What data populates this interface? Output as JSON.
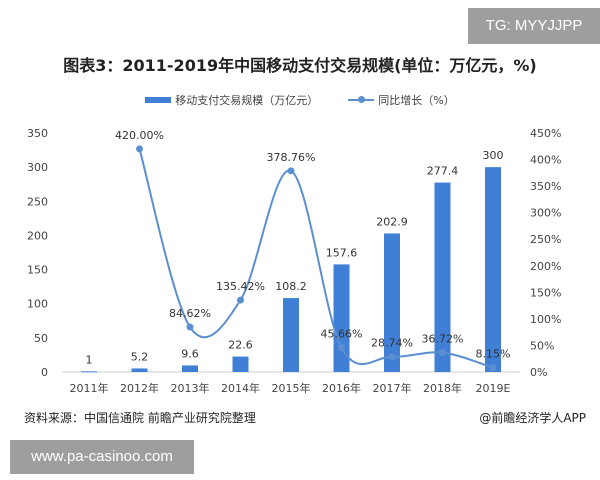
{
  "watermark_top": "TG: MYYJJPP",
  "watermark_bottom": "www.pa-casinoo.com",
  "source": "资料来源：中国信通院 前瞻产业研究院整理",
  "brand": "@前瞻经济学人APP",
  "chart_data": {
    "type": "bar+line",
    "title": "图表3：2011-2019年中国移动支付交易规模(单位：万亿元，%)",
    "categories": [
      "2011年",
      "2012年",
      "2013年",
      "2014年",
      "2015年",
      "2016年",
      "2017年",
      "2018年",
      "2019E"
    ],
    "series": [
      {
        "name": "移动支付交易规模（万亿元）",
        "type": "bar",
        "axis": "left",
        "values": [
          1,
          5.2,
          9.6,
          22.6,
          108.2,
          157.6,
          202.9,
          277.4,
          300
        ],
        "labels": [
          "1",
          "5.2",
          "9.6",
          "22.6",
          "108.2",
          "157.6",
          "202.9",
          "277.4",
          "300"
        ]
      },
      {
        "name": "同比增长（%）",
        "type": "line",
        "axis": "right",
        "values": [
          null,
          420.0,
          84.62,
          135.42,
          378.76,
          45.66,
          28.74,
          36.72,
          8.15
        ],
        "labels": [
          "",
          "420.00%",
          "84.62%",
          "135.42%",
          "378.76%",
          "45.66%",
          "28.74%",
          "36.72%",
          "8.15%"
        ]
      }
    ],
    "y_left": {
      "ylim": [
        0,
        350
      ],
      "ticks": [
        "0",
        "50",
        "100",
        "150",
        "200",
        "250",
        "300",
        "350"
      ]
    },
    "y_right": {
      "ylim": [
        0,
        450
      ],
      "ticks": [
        "0%",
        "50%",
        "100%",
        "150%",
        "200%",
        "250%",
        "300%",
        "350%",
        "400%",
        "450%"
      ]
    },
    "grid": false,
    "legend": "top-center",
    "colors": {
      "bar": "#3f7fd6",
      "line": "#5b8fd0"
    }
  }
}
